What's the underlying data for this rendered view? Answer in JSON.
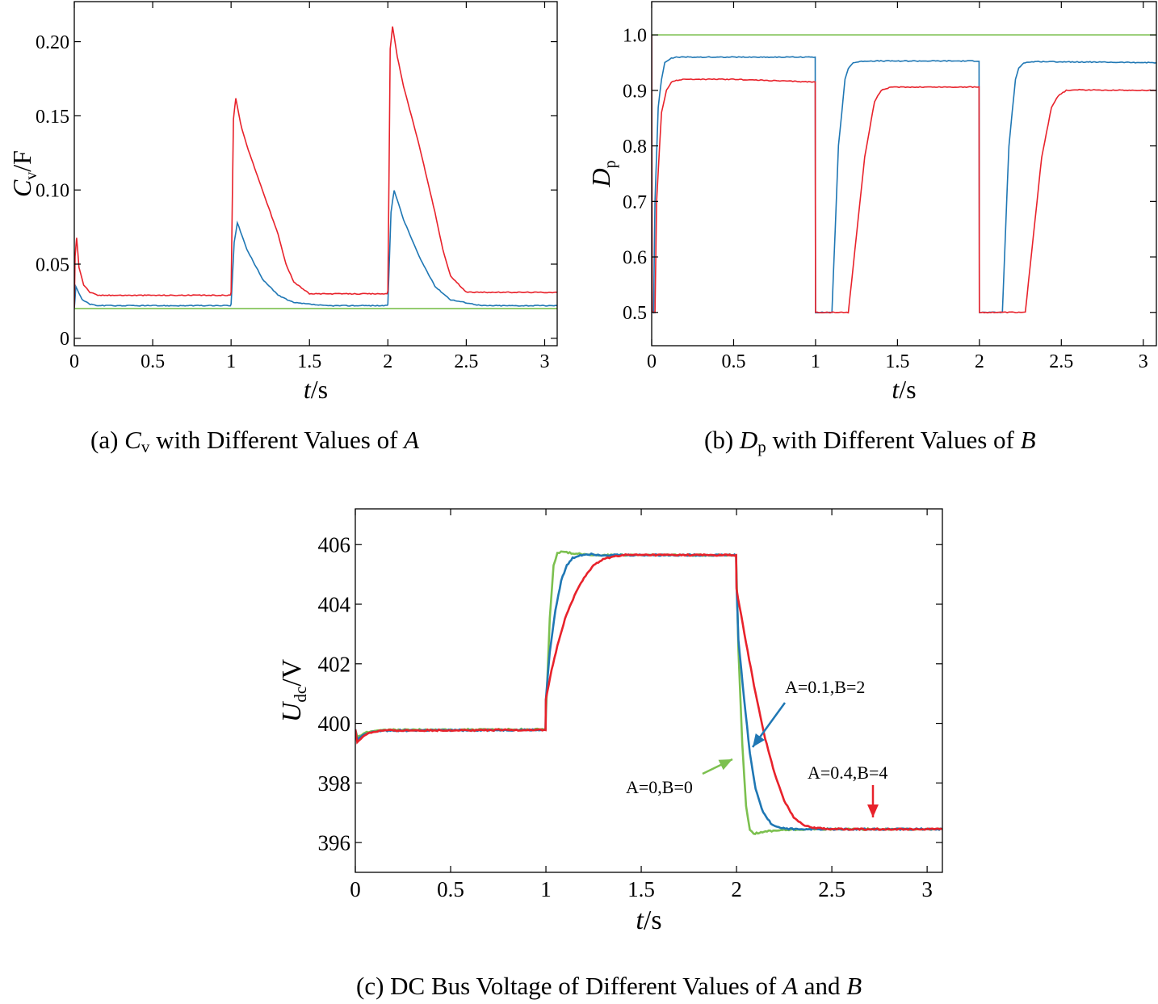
{
  "captions": {
    "a": {
      "prefix": "(a) ",
      "sym": "C",
      "sub": "v",
      "mid": " with Different Values of ",
      "var": "A"
    },
    "b": {
      "prefix": "(b) ",
      "sym": "D",
      "sub": "p",
      "mid": " with Different Values of ",
      "var": "B"
    },
    "c": {
      "prefix": "(c) DC Bus Voltage of Different Values of ",
      "var1": "A",
      "mid": " and ",
      "var2": "B"
    }
  },
  "colors": {
    "a0": "#7cc04f",
    "a01": "#1f77b4",
    "a04": "#e8222b"
  },
  "chart_data": [
    {
      "id": "a",
      "type": "line",
      "title": "(a) Cv with Different Values of A",
      "xlabel": {
        "italic": "t",
        "rest": "/s"
      },
      "ylabel": {
        "italic": "C",
        "sub": "v",
        "rest": "/F"
      },
      "xlim": [
        0,
        3.08
      ],
      "ylim": [
        -0.005,
        0.227
      ],
      "xticks": [
        0,
        0.5,
        1,
        1.5,
        2,
        2.5,
        3
      ],
      "xtick_labels": [
        "0",
        "0.5",
        "1",
        "1.5",
        "2",
        "2.5",
        "3"
      ],
      "yticks": [
        0,
        0.05,
        0.1,
        0.15,
        0.2
      ],
      "ytick_labels": [
        "0",
        "0.05",
        "0.10",
        "0.15",
        "0.20"
      ],
      "series": [
        {
          "name": "A=0",
          "color": "#7cc04f",
          "x": [
            0,
            3.08
          ],
          "y": [
            0.02,
            0.02
          ]
        },
        {
          "name": "A=0.1",
          "color": "#1f77b4",
          "x": [
            0,
            0.01,
            0.05,
            0.1,
            0.15,
            0.995,
            1.0,
            1.02,
            1.04,
            1.1,
            1.2,
            1.3,
            1.4,
            1.6,
            1.995,
            2.0,
            2.02,
            2.04,
            2.1,
            2.2,
            2.3,
            2.4,
            2.6,
            3.08
          ],
          "y": [
            0.02,
            0.035,
            0.026,
            0.023,
            0.022,
            0.022,
            0.023,
            0.065,
            0.078,
            0.06,
            0.04,
            0.029,
            0.024,
            0.022,
            0.022,
            0.023,
            0.085,
            0.1,
            0.08,
            0.055,
            0.035,
            0.026,
            0.022,
            0.022
          ]
        },
        {
          "name": "A=0.4",
          "color": "#e8222b",
          "x": [
            0,
            0.005,
            0.015,
            0.03,
            0.06,
            0.1,
            0.15,
            0.995,
            1.0,
            1.015,
            1.03,
            1.06,
            1.1,
            1.2,
            1.3,
            1.35,
            1.4,
            1.5,
            1.995,
            2.0,
            2.015,
            2.03,
            2.06,
            2.1,
            2.2,
            2.3,
            2.35,
            2.4,
            2.5,
            3.08
          ],
          "y": [
            0.021,
            0.055,
            0.068,
            0.048,
            0.036,
            0.031,
            0.029,
            0.029,
            0.031,
            0.148,
            0.162,
            0.145,
            0.13,
            0.1,
            0.07,
            0.05,
            0.038,
            0.03,
            0.03,
            0.032,
            0.195,
            0.21,
            0.19,
            0.17,
            0.13,
            0.085,
            0.06,
            0.042,
            0.031,
            0.031
          ]
        }
      ]
    },
    {
      "id": "b",
      "type": "line",
      "title": "(b) Dp with Different Values of B",
      "xlabel": {
        "italic": "t",
        "rest": "/s"
      },
      "ylabel": {
        "italic": "D",
        "sub": "p",
        "rest": ""
      },
      "xlim": [
        0,
        3.08
      ],
      "ylim": [
        0.44,
        1.06
      ],
      "xticks": [
        0,
        0.5,
        1,
        1.5,
        2,
        2.5,
        3
      ],
      "xtick_labels": [
        "0",
        "0.5",
        "1",
        "1.5",
        "2",
        "2.5",
        "3"
      ],
      "yticks": [
        0.5,
        0.6,
        0.7,
        0.8,
        0.9,
        1.0
      ],
      "ytick_labels": [
        "0.5",
        "0.6",
        "0.7",
        "0.8",
        "0.9",
        "1.0"
      ],
      "series": [
        {
          "name": "B=0",
          "color": "#7cc04f",
          "x": [
            0,
            3.08
          ],
          "y": [
            1.0,
            1.0
          ]
        },
        {
          "name": "B=2",
          "color": "#1f77b4",
          "x": [
            0,
            0.003,
            0.012,
            0.02,
            0.04,
            0.06,
            0.08,
            0.12,
            0.15,
            0.2,
            0.5,
            0.998,
            1.0,
            1.1,
            1.14,
            1.18,
            1.2,
            1.23,
            1.3,
            1.998,
            2.0,
            2.14,
            2.18,
            2.22,
            2.24,
            2.27,
            2.35,
            3.08
          ],
          "y": [
            1.0,
            0.5,
            0.5,
            0.7,
            0.87,
            0.92,
            0.95,
            0.958,
            0.96,
            0.96,
            0.96,
            0.96,
            0.5,
            0.5,
            0.8,
            0.92,
            0.94,
            0.95,
            0.953,
            0.953,
            0.5,
            0.5,
            0.8,
            0.92,
            0.94,
            0.95,
            0.952,
            0.95
          ]
        },
        {
          "name": "B=4",
          "color": "#e8222b",
          "x": [
            0,
            0.003,
            0.02,
            0.03,
            0.06,
            0.09,
            0.12,
            0.15,
            0.2,
            0.5,
            0.998,
            1.0,
            1.2,
            1.3,
            1.36,
            1.4,
            1.45,
            1.5,
            1.998,
            2.0,
            2.28,
            2.38,
            2.44,
            2.48,
            2.53,
            2.6,
            3.08
          ],
          "y": [
            1.0,
            0.5,
            0.5,
            0.7,
            0.86,
            0.9,
            0.915,
            0.918,
            0.92,
            0.92,
            0.915,
            0.5,
            0.5,
            0.78,
            0.88,
            0.9,
            0.905,
            0.906,
            0.906,
            0.5,
            0.5,
            0.78,
            0.87,
            0.89,
            0.9,
            0.901,
            0.9
          ]
        }
      ]
    },
    {
      "id": "c",
      "type": "line",
      "title": "(c) DC Bus Voltage of Different Values of A and B",
      "xlabel": {
        "italic": "t",
        "rest": "/s"
      },
      "ylabel": {
        "italic": "U",
        "sub": "dc",
        "rest": "/V"
      },
      "xlim": [
        0,
        3.08
      ],
      "ylim": [
        395,
        407.2
      ],
      "xticks": [
        0,
        0.5,
        1,
        1.5,
        2,
        2.5,
        3
      ],
      "xtick_labels": [
        "0",
        "0.5",
        "1",
        "1.5",
        "2",
        "2.5",
        "3"
      ],
      "yticks": [
        396,
        398,
        400,
        402,
        404,
        406
      ],
      "ytick_labels": [
        "396",
        "398",
        "400",
        "402",
        "404",
        "406"
      ],
      "annotations": [
        {
          "text": "A=0,B=0",
          "color": "#7cc04f"
        },
        {
          "text": "A=0.1,B=2",
          "color": "#1f77b4"
        },
        {
          "text": "A=0.4,B=4",
          "color": "#e8222b"
        }
      ],
      "series": [
        {
          "name": "A=0,B=0",
          "color": "#7cc04f",
          "x": [
            0,
            0.01,
            0.03,
            0.06,
            0.1,
            0.15,
            0.998,
            1.0,
            1.02,
            1.04,
            1.06,
            1.08,
            1.1,
            1.15,
            1.25,
            1.4,
            1.998,
            2.0,
            2.01,
            2.03,
            2.05,
            2.07,
            2.09,
            2.12,
            2.16,
            2.25,
            2.4,
            3.08
          ],
          "y": [
            399.8,
            399.55,
            399.6,
            399.7,
            399.75,
            399.78,
            399.8,
            400.3,
            403.5,
            405.3,
            405.7,
            405.78,
            405.75,
            405.7,
            405.65,
            405.65,
            405.65,
            405.0,
            402.5,
            399.3,
            397.2,
            396.45,
            396.3,
            396.32,
            396.38,
            396.42,
            396.45,
            396.45
          ]
        },
        {
          "name": "A=0.1,B=2",
          "color": "#1f77b4",
          "x": [
            0,
            0.01,
            0.03,
            0.06,
            0.1,
            0.15,
            0.998,
            1.0,
            1.02,
            1.05,
            1.08,
            1.11,
            1.14,
            1.18,
            1.22,
            1.3,
            1.5,
            1.998,
            2.0,
            2.01,
            2.04,
            2.07,
            2.1,
            2.14,
            2.18,
            2.22,
            2.3,
            2.4,
            3.08
          ],
          "y": [
            399.8,
            399.45,
            399.55,
            399.65,
            399.72,
            399.76,
            399.78,
            400.8,
            402.4,
            403.8,
            404.8,
            405.3,
            405.55,
            405.65,
            405.68,
            405.65,
            405.65,
            405.65,
            404.6,
            402.8,
            400.8,
            399.0,
            397.8,
            397.0,
            396.65,
            396.5,
            396.45,
            396.45,
            396.45
          ]
        },
        {
          "name": "A=0.4,B=4",
          "color": "#e8222b",
          "x": [
            0,
            0.01,
            0.03,
            0.06,
            0.1,
            0.15,
            0.998,
            1.0,
            1.03,
            1.06,
            1.1,
            1.15,
            1.2,
            1.25,
            1.3,
            1.35,
            1.4,
            1.5,
            1.998,
            2.0,
            2.05,
            2.1,
            2.15,
            2.2,
            2.25,
            2.3,
            2.35,
            2.4,
            2.5,
            3.08
          ],
          "y": [
            399.8,
            399.35,
            399.5,
            399.65,
            399.72,
            399.76,
            399.78,
            400.8,
            401.8,
            402.6,
            403.5,
            404.3,
            404.9,
            405.3,
            405.5,
            405.6,
            405.65,
            405.65,
            405.65,
            404.5,
            402.7,
            401.0,
            399.5,
            398.3,
            397.4,
            396.85,
            396.6,
            396.5,
            396.45,
            396.45
          ]
        }
      ]
    }
  ]
}
